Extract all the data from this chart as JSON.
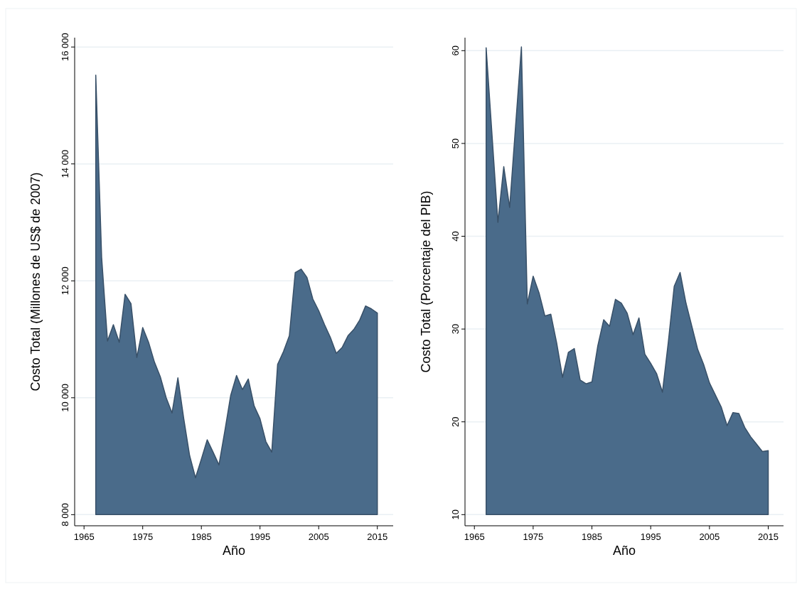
{
  "chart_data": [
    {
      "type": "area",
      "xlabel": "Año",
      "ylabel": "Costo Total (Millones de US$ de 2007)",
      "color": "#4a6b8a",
      "grid": "y",
      "x": [
        1967,
        1968,
        1969,
        1970,
        1971,
        1972,
        1973,
        1974,
        1975,
        1976,
        1977,
        1978,
        1979,
        1980,
        1981,
        1982,
        1983,
        1984,
        1985,
        1986,
        1987,
        1988,
        1989,
        1990,
        1991,
        1992,
        1993,
        1994,
        1995,
        1996,
        1997,
        1998,
        1999,
        2000,
        2001,
        2002,
        2003,
        2004,
        2005,
        2006,
        2007,
        2008,
        2009,
        2010,
        2011,
        2012,
        2013,
        2014,
        2015
      ],
      "values": [
        15520,
        12400,
        10970,
        11250,
        10950,
        11770,
        11610,
        10690,
        11200,
        10950,
        10610,
        10360,
        10000,
        9740,
        10340,
        9640,
        9010,
        8630,
        8950,
        9280,
        9070,
        8850,
        9430,
        10040,
        10380,
        10140,
        10320,
        9860,
        9640,
        9250,
        9070,
        10570,
        10790,
        11060,
        12140,
        12200,
        12060,
        11690,
        11490,
        11250,
        11030,
        10760,
        10860,
        11060,
        11170,
        11330,
        11570,
        11520,
        11450
      ],
      "xlim": [
        1963.4,
        2017.7
      ],
      "xticks": [
        1965,
        1975,
        1985,
        1995,
        2005,
        2015
      ],
      "ylim": [
        7810,
        16160
      ],
      "yticks": [
        {
          "value": 8000,
          "label": "8 000"
        },
        {
          "value": 10000,
          "label": "10 000"
        },
        {
          "value": 12000,
          "label": "12 000"
        },
        {
          "value": 14000,
          "label": "14 000"
        },
        {
          "value": 16000,
          "label": "16 000"
        }
      ]
    },
    {
      "type": "area",
      "xlabel": "Año",
      "ylabel": "Costo Total (Porcentaje del PIB)",
      "color": "#4a6b8a",
      "grid": "y",
      "x": [
        1967,
        1968,
        1969,
        1970,
        1971,
        1972,
        1973,
        1974,
        1975,
        1976,
        1977,
        1978,
        1979,
        1980,
        1981,
        1982,
        1983,
        1984,
        1985,
        1986,
        1987,
        1988,
        1989,
        1990,
        1991,
        1992,
        1993,
        1994,
        1995,
        1996,
        1997,
        1998,
        1999,
        2000,
        2001,
        2002,
        2003,
        2004,
        2005,
        2006,
        2007,
        2008,
        2009,
        2010,
        2011,
        2012,
        2013,
        2014,
        2015
      ],
      "values": [
        60.3,
        50.9,
        41.5,
        47.5,
        43.1,
        51.8,
        60.4,
        32.7,
        35.7,
        33.9,
        31.4,
        31.6,
        28.5,
        24.8,
        27.5,
        27.9,
        24.5,
        24.1,
        24.3,
        28.2,
        31.0,
        30.3,
        33.2,
        32.8,
        31.7,
        29.4,
        31.2,
        27.3,
        26.3,
        25.2,
        23.2,
        28.6,
        34.6,
        36.1,
        32.8,
        30.3,
        27.8,
        26.2,
        24.2,
        22.9,
        21.6,
        19.6,
        21.0,
        20.9,
        19.4,
        18.4,
        17.6,
        16.8,
        16.9
      ],
      "xlim": [
        1963.4,
        2017.6
      ],
      "xticks": [
        1965,
        1975,
        1985,
        1995,
        2005,
        2015
      ],
      "ylim": [
        8.8,
        61.4
      ],
      "yticks": [
        10,
        20,
        30,
        40,
        50,
        60
      ]
    }
  ]
}
